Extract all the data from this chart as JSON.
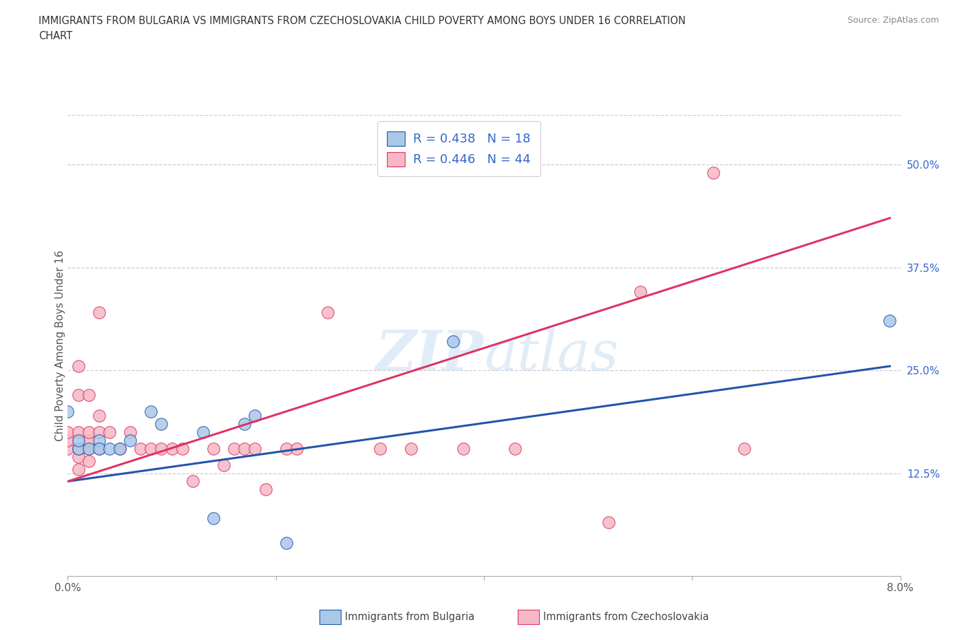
{
  "title_line1": "IMMIGRANTS FROM BULGARIA VS IMMIGRANTS FROM CZECHOSLOVAKIA CHILD POVERTY AMONG BOYS UNDER 16 CORRELATION",
  "title_line2": "CHART",
  "source_text": "Source: ZipAtlas.com",
  "ylabel": "Child Poverty Among Boys Under 16",
  "xlim": [
    0.0,
    0.08
  ],
  "ylim": [
    0.0,
    0.56
  ],
  "xticks": [
    0.0,
    0.02,
    0.04,
    0.06,
    0.08
  ],
  "xticklabels": [
    "0.0%",
    "",
    "",
    "",
    "8.0%"
  ],
  "ytick_positions": [
    0.125,
    0.25,
    0.375,
    0.5
  ],
  "yticklabels": [
    "12.5%",
    "25.0%",
    "37.5%",
    "50.0%"
  ],
  "bg_color": "#ffffff",
  "grid_color": "#cccccc",
  "legend_r1": "R = 0.438   N = 18",
  "legend_r2": "R = 0.446   N = 44",
  "legend_text_color": "#333333",
  "legend_value_color": "#3366cc",
  "bulgaria_color": "#aac8e8",
  "czechoslovakia_color": "#f5b8c4",
  "line_bulgaria_color": "#2255aa",
  "line_czechoslovakia_color": "#dd3366",
  "bulgaria_points": [
    [
      0.0,
      0.2
    ],
    [
      0.001,
      0.155
    ],
    [
      0.001,
      0.165
    ],
    [
      0.002,
      0.155
    ],
    [
      0.003,
      0.165
    ],
    [
      0.003,
      0.155
    ],
    [
      0.004,
      0.155
    ],
    [
      0.005,
      0.155
    ],
    [
      0.006,
      0.165
    ],
    [
      0.008,
      0.2
    ],
    [
      0.009,
      0.185
    ],
    [
      0.013,
      0.175
    ],
    [
      0.014,
      0.07
    ],
    [
      0.017,
      0.185
    ],
    [
      0.018,
      0.195
    ],
    [
      0.021,
      0.04
    ],
    [
      0.037,
      0.285
    ],
    [
      0.079,
      0.31
    ]
  ],
  "czechoslovakia_points": [
    [
      0.0,
      0.155
    ],
    [
      0.0,
      0.165
    ],
    [
      0.0,
      0.175
    ],
    [
      0.001,
      0.13
    ],
    [
      0.001,
      0.145
    ],
    [
      0.001,
      0.155
    ],
    [
      0.001,
      0.175
    ],
    [
      0.001,
      0.22
    ],
    [
      0.001,
      0.255
    ],
    [
      0.002,
      0.14
    ],
    [
      0.002,
      0.155
    ],
    [
      0.002,
      0.165
    ],
    [
      0.002,
      0.175
    ],
    [
      0.002,
      0.22
    ],
    [
      0.003,
      0.155
    ],
    [
      0.003,
      0.175
    ],
    [
      0.003,
      0.195
    ],
    [
      0.003,
      0.32
    ],
    [
      0.004,
      0.175
    ],
    [
      0.005,
      0.155
    ],
    [
      0.006,
      0.175
    ],
    [
      0.007,
      0.155
    ],
    [
      0.008,
      0.155
    ],
    [
      0.009,
      0.155
    ],
    [
      0.01,
      0.155
    ],
    [
      0.011,
      0.155
    ],
    [
      0.012,
      0.115
    ],
    [
      0.014,
      0.155
    ],
    [
      0.015,
      0.135
    ],
    [
      0.016,
      0.155
    ],
    [
      0.017,
      0.155
    ],
    [
      0.018,
      0.155
    ],
    [
      0.019,
      0.105
    ],
    [
      0.021,
      0.155
    ],
    [
      0.022,
      0.155
    ],
    [
      0.025,
      0.32
    ],
    [
      0.03,
      0.155
    ],
    [
      0.033,
      0.155
    ],
    [
      0.038,
      0.155
    ],
    [
      0.043,
      0.155
    ],
    [
      0.052,
      0.065
    ],
    [
      0.055,
      0.345
    ],
    [
      0.062,
      0.49
    ],
    [
      0.065,
      0.155
    ]
  ],
  "bulgaria_trendline_x": [
    0.0,
    0.079
  ],
  "bulgaria_trendline_y": [
    0.115,
    0.255
  ],
  "czechoslovakia_trendline_x": [
    0.0,
    0.079
  ],
  "czechoslovakia_trendline_y": [
    0.115,
    0.435
  ]
}
